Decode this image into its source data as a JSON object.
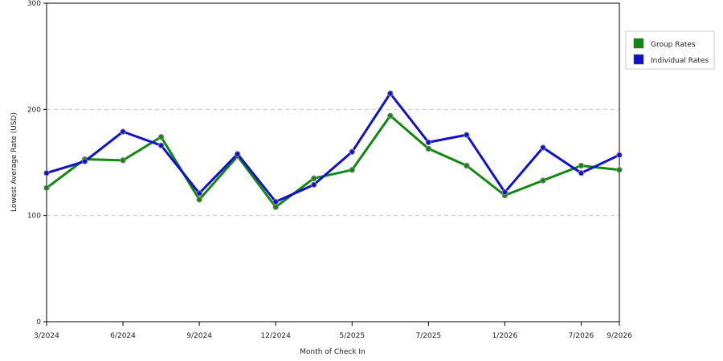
{
  "chart_data": {
    "type": "line",
    "title": "",
    "xlabel": "Month of Check In",
    "ylabel": "Lowest Average Rate (USD)",
    "ylim": [
      0,
      300
    ],
    "yticks": [
      0,
      100,
      200,
      300
    ],
    "grid": true,
    "legend_placement": "top-right",
    "x_tick_labels": [
      "3/2024",
      "6/2024",
      "9/2024",
      "12/2024",
      "5/2025",
      "7/2025",
      "1/2026",
      "7/2026",
      "9/2026"
    ],
    "x_tick_positions": [
      0,
      2,
      4,
      6,
      8,
      10,
      12,
      14,
      15
    ],
    "x_count": 16,
    "series": [
      {
        "name": "Group Rates",
        "color": "#118811",
        "values": [
          126,
          153,
          152,
          174,
          115,
          156,
          108,
          135,
          143,
          194,
          163,
          147,
          119,
          133,
          147,
          143
        ]
      },
      {
        "name": "Individual Rates",
        "color": "#1111cc",
        "values": [
          140,
          151,
          179,
          166,
          121,
          158,
          113,
          129,
          160,
          215,
          169,
          176,
          122,
          164,
          140,
          157
        ]
      }
    ]
  }
}
